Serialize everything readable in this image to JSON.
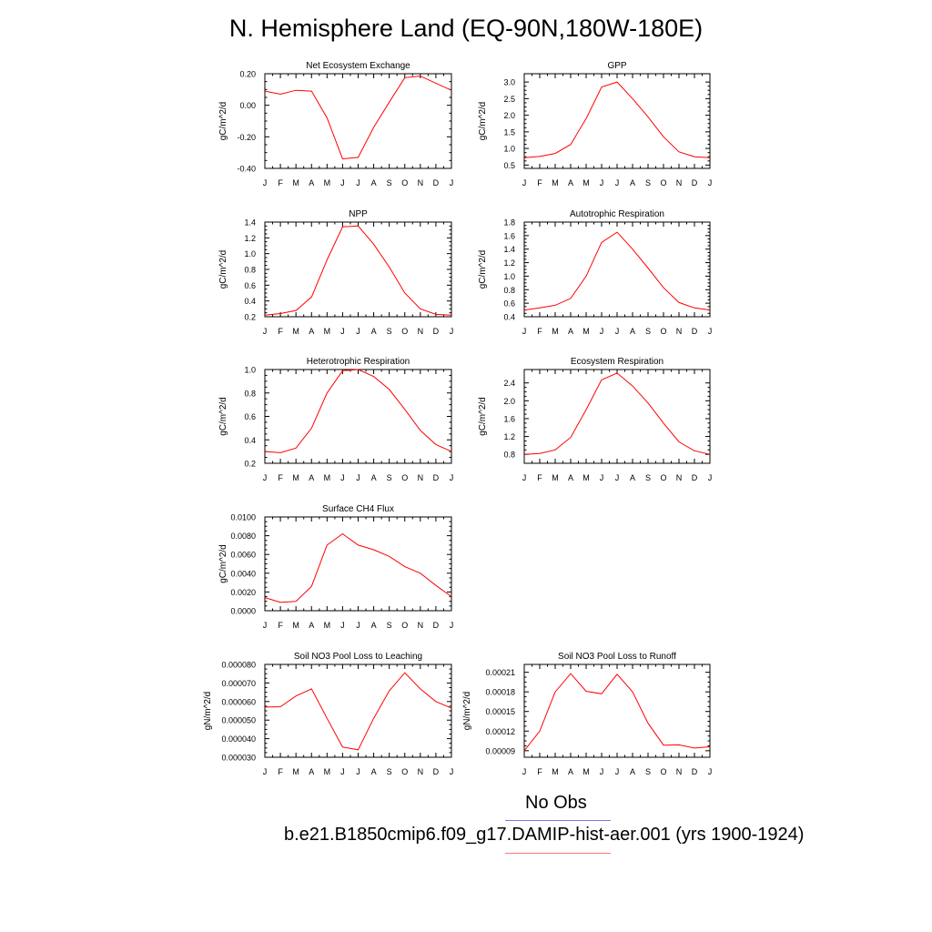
{
  "title": "N. Hemisphere Land (EQ-90N,180W-180E)",
  "legend": [
    {
      "label": "No Obs",
      "color": "#7777ee"
    },
    {
      "label": "b.e21.B1850cmip6.f09_g17.DAMIP-hist-aer.001 (yrs 1900-1924)",
      "color": "#ff7777"
    }
  ],
  "series_color": "#ff0000",
  "chart_data": [
    {
      "type": "line",
      "title": "Net Ecosystem Exchange",
      "xlabel": "",
      "ylabel": "gC/m^2/d",
      "x": [
        "J",
        "F",
        "M",
        "A",
        "M",
        "J",
        "J",
        "A",
        "S",
        "O",
        "N",
        "D",
        "J"
      ],
      "ylim": [
        -0.4,
        0.2
      ],
      "yticks": [
        "-0.40",
        "-0.20",
        "0.00",
        "0.20"
      ],
      "values": [
        0.09,
        0.07,
        0.095,
        0.09,
        -0.08,
        -0.34,
        -0.33,
        -0.14,
        0.02,
        0.175,
        0.185,
        0.14,
        0.095
      ]
    },
    {
      "type": "line",
      "title": "GPP",
      "xlabel": "",
      "ylabel": "gC/m^2/d",
      "x": [
        "J",
        "F",
        "M",
        "A",
        "M",
        "J",
        "J",
        "A",
        "S",
        "O",
        "N",
        "D",
        "J"
      ],
      "ylim": [
        0.4,
        3.25
      ],
      "yticks": [
        "0.5",
        "1.0",
        "1.5",
        "2.0",
        "2.5",
        "3.0"
      ],
      "values": [
        0.72,
        0.76,
        0.85,
        1.12,
        1.9,
        2.85,
        3.0,
        2.5,
        1.95,
        1.35,
        0.9,
        0.75,
        0.72
      ]
    },
    {
      "type": "line",
      "title": "NPP",
      "xlabel": "",
      "ylabel": "gC/m^2/d",
      "x": [
        "J",
        "F",
        "M",
        "A",
        "M",
        "J",
        "J",
        "A",
        "S",
        "O",
        "N",
        "D",
        "J"
      ],
      "ylim": [
        0.2,
        1.4
      ],
      "yticks": [
        "0.2",
        "0.4",
        "0.6",
        "0.8",
        "1.0",
        "1.2",
        "1.4"
      ],
      "values": [
        0.22,
        0.24,
        0.28,
        0.45,
        0.92,
        1.34,
        1.35,
        1.12,
        0.83,
        0.5,
        0.3,
        0.23,
        0.22
      ]
    },
    {
      "type": "line",
      "title": "Autotrophic Respiration",
      "xlabel": "",
      "ylabel": "gC/m^2/d",
      "x": [
        "J",
        "F",
        "M",
        "A",
        "M",
        "J",
        "J",
        "A",
        "S",
        "O",
        "N",
        "D",
        "J"
      ],
      "ylim": [
        0.4,
        1.8
      ],
      "yticks": [
        "0.4",
        "0.6",
        "0.8",
        "1.0",
        "1.2",
        "1.4",
        "1.6",
        "1.8"
      ],
      "values": [
        0.5,
        0.53,
        0.57,
        0.67,
        1.0,
        1.5,
        1.65,
        1.4,
        1.12,
        0.83,
        0.61,
        0.53,
        0.5
      ]
    },
    {
      "type": "line",
      "title": "Heterotrophic Respiration",
      "xlabel": "",
      "ylabel": "gC/m^2/d",
      "x": [
        "J",
        "F",
        "M",
        "A",
        "M",
        "J",
        "J",
        "A",
        "S",
        "O",
        "N",
        "D",
        "J"
      ],
      "ylim": [
        0.2,
        1.0
      ],
      "yticks": [
        "0.2",
        "0.4",
        "0.6",
        "0.8",
        "1.0"
      ],
      "values": [
        0.3,
        0.29,
        0.33,
        0.5,
        0.8,
        0.99,
        1.0,
        0.94,
        0.83,
        0.66,
        0.48,
        0.36,
        0.3
      ]
    },
    {
      "type": "line",
      "title": "Ecosystem Respiration",
      "xlabel": "",
      "ylabel": "gC/m^2/d",
      "x": [
        "J",
        "F",
        "M",
        "A",
        "M",
        "J",
        "J",
        "A",
        "S",
        "O",
        "N",
        "D",
        "J"
      ],
      "ylim": [
        0.6,
        2.7
      ],
      "yticks": [
        "0.8",
        "1.2",
        "1.6",
        "2.0",
        "2.4"
      ],
      "values": [
        0.8,
        0.82,
        0.9,
        1.18,
        1.8,
        2.47,
        2.62,
        2.33,
        1.95,
        1.5,
        1.08,
        0.88,
        0.8
      ]
    },
    {
      "type": "line",
      "title": "Surface CH4 Flux",
      "xlabel": "",
      "ylabel": "gC/m^2/d",
      "x": [
        "J",
        "F",
        "M",
        "A",
        "M",
        "J",
        "J",
        "A",
        "S",
        "O",
        "N",
        "D",
        "J"
      ],
      "ylim": [
        0.0,
        0.01
      ],
      "yticks": [
        "0.0000",
        "0.0020",
        "0.0040",
        "0.0060",
        "0.0080",
        "0.0100"
      ],
      "values": [
        0.0014,
        0.0009,
        0.001,
        0.0026,
        0.007,
        0.0082,
        0.007,
        0.0065,
        0.0058,
        0.0047,
        0.004,
        0.0027,
        0.0015
      ]
    },
    {
      "type": "line",
      "title": "Soil NO3 Pool Loss to Leaching",
      "xlabel": "",
      "ylabel": "gN/m^2/d",
      "x": [
        "J",
        "F",
        "M",
        "A",
        "M",
        "J",
        "J",
        "A",
        "S",
        "O",
        "N",
        "D",
        "J"
      ],
      "ylim": [
        3e-05,
        8e-05
      ],
      "yticks": [
        "0.000030",
        "0.000040",
        "0.000050",
        "0.000060",
        "0.000070",
        "0.000080"
      ],
      "values": [
        5.7e-05,
        5.72e-05,
        6.3e-05,
        6.68e-05,
        5.1e-05,
        3.55e-05,
        3.4e-05,
        5.1e-05,
        6.58e-05,
        7.55e-05,
        6.68e-05,
        6e-05,
        5.65e-05
      ]
    },
    {
      "type": "line",
      "title": "Soil NO3 Pool Loss to Runoff",
      "xlabel": "",
      "ylabel": "gN/m^2/d",
      "x": [
        "J",
        "F",
        "M",
        "A",
        "M",
        "J",
        "J",
        "A",
        "S",
        "O",
        "N",
        "D",
        "J"
      ],
      "ylim": [
        8e-05,
        0.000222
      ],
      "yticks": [
        "0.00009",
        "0.00012",
        "0.00015",
        "0.00018",
        "0.00021"
      ],
      "values": [
        9e-05,
        0.00012,
        0.00018,
        0.000208,
        0.000181,
        0.000177,
        0.000207,
        0.00018,
        0.000132,
        9.85e-05,
        9.9e-05,
        9.4e-05,
        9.6e-05
      ]
    }
  ]
}
